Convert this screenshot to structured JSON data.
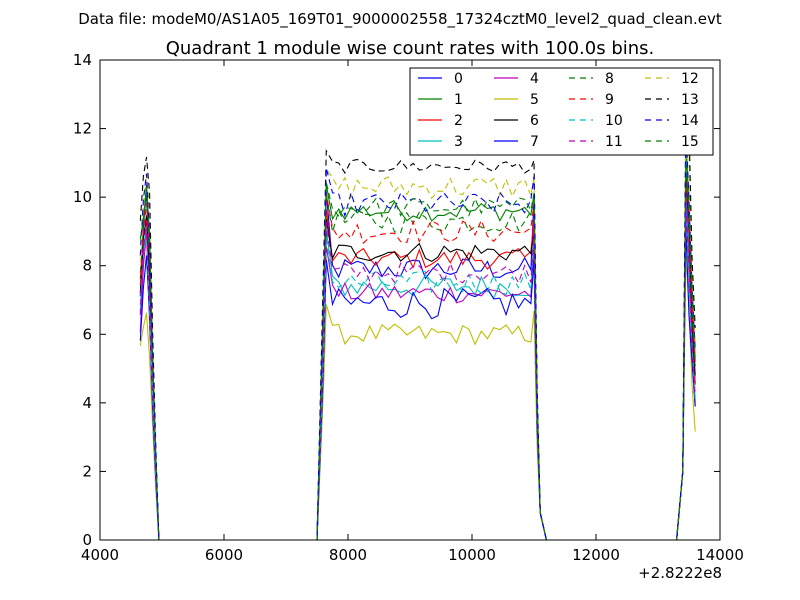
{
  "chart_data": {
    "type": "line",
    "suptitle": "Data file: modeM0/AS1A05_169T01_9000002558_17324cztM0_level2_quad_clean.evt",
    "title": "Quadrant 1 module wise count rates with 100.0s bins.",
    "xlabel": "",
    "ylabel": "",
    "x_offset_label": "+2.8222e8",
    "xlim": [
      4000,
      14000
    ],
    "ylim": [
      0,
      14
    ],
    "xticks": [
      4000,
      6000,
      8000,
      10000,
      12000,
      14000
    ],
    "yticks": [
      0,
      2,
      4,
      6,
      8,
      10,
      12,
      14
    ],
    "grid": false,
    "legend_position": "top-right",
    "legend_columns": 4,
    "segments": [
      {
        "x_start": 4650,
        "x_end": 4950,
        "peak_x": 4750
      },
      {
        "x_start": 7650,
        "x_end": 11050
      },
      {
        "x_start": 13450,
        "x_end": 13600
      }
    ],
    "series": [
      {
        "name": "0",
        "color": "#0000ff",
        "style": "solid",
        "base": 7.9,
        "amp": 0.35,
        "edge": 10.1
      },
      {
        "name": "1",
        "color": "#008000",
        "style": "solid",
        "base": 9.6,
        "amp": 0.3,
        "edge": 10.3
      },
      {
        "name": "2",
        "color": "#ff0000",
        "style": "solid",
        "base": 8.2,
        "amp": 0.3,
        "edge": 9.6
      },
      {
        "name": "3",
        "color": "#00bfbf",
        "style": "solid",
        "base": 7.4,
        "amp": 0.35,
        "edge": 9.0
      },
      {
        "name": "4",
        "color": "#bf00bf",
        "style": "solid",
        "base": 7.2,
        "amp": 0.3,
        "edge": 8.7
      },
      {
        "name": "5",
        "color": "#bfbf00",
        "style": "solid",
        "base": 6.0,
        "amp": 0.3,
        "edge": 6.9
      },
      {
        "name": "6",
        "color": "#000000",
        "style": "solid",
        "base": 8.4,
        "amp": 0.3,
        "edge": 9.3
      },
      {
        "name": "7",
        "color": "#0000ff",
        "style": "solid",
        "base": 6.9,
        "amp": 0.45,
        "edge": 8.2
      },
      {
        "name": "8",
        "color": "#008000",
        "style": "dashed",
        "base": 9.3,
        "amp": 0.35,
        "edge": 10.1
      },
      {
        "name": "9",
        "color": "#ff0000",
        "style": "dashed",
        "base": 9.0,
        "amp": 0.35,
        "edge": 10.0
      },
      {
        "name": "10",
        "color": "#00bfbf",
        "style": "dashed",
        "base": 7.5,
        "amp": 0.35,
        "edge": 8.9
      },
      {
        "name": "11",
        "color": "#bf00bf",
        "style": "dashed",
        "base": 7.8,
        "amp": 0.3,
        "edge": 9.2
      },
      {
        "name": "12",
        "color": "#bfbf00",
        "style": "dashed",
        "base": 10.3,
        "amp": 0.35,
        "edge": 10.8
      },
      {
        "name": "13",
        "color": "#000000",
        "style": "dashed",
        "base": 10.9,
        "amp": 0.2,
        "edge": 11.3
      },
      {
        "name": "14",
        "color": "#0000ff",
        "style": "dashed",
        "base": 9.8,
        "amp": 0.35,
        "edge": 10.7
      },
      {
        "name": "15",
        "color": "#008000",
        "style": "dashed",
        "base": 9.7,
        "amp": 0.3,
        "edge": 10.4
      }
    ]
  }
}
